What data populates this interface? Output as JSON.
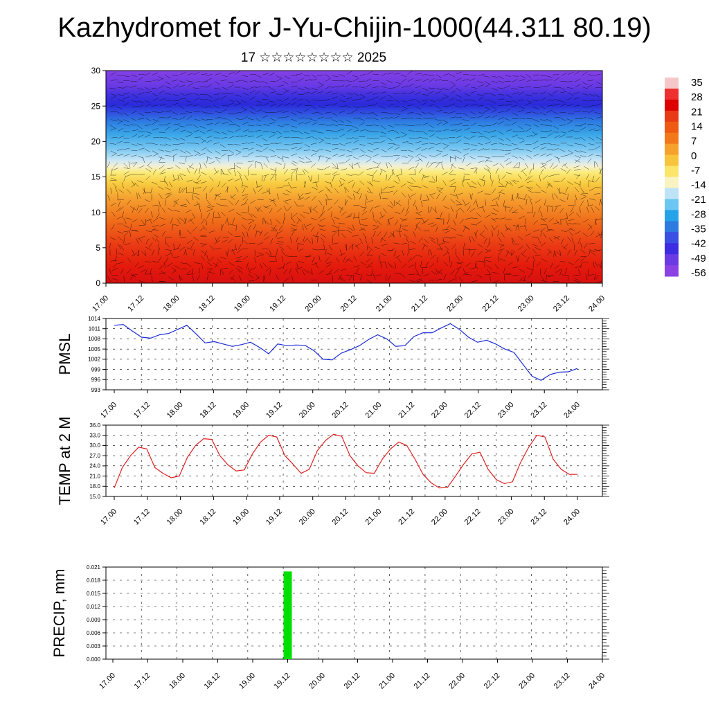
{
  "title": "Kazhydromet for J-Yu-Chijin-1000(44.311 80.19)",
  "subtitle": "17 ☆☆☆☆☆☆☆☆ 2025",
  "colorbar": {
    "labels": [
      "35",
      "28",
      "21",
      "14",
      "7",
      "0",
      "-7",
      "-14",
      "-21",
      "-28",
      "-35",
      "-42",
      "-49",
      "-56"
    ],
    "colors": [
      "#f4c8c8",
      "#ee3030",
      "#de0000",
      "#e83a14",
      "#ef5a12",
      "#f2781a",
      "#f6a12c",
      "#f8c43c",
      "#fbe56a",
      "#f9f3c2",
      "#bfe3f6",
      "#6cc6f2",
      "#26a2e8",
      "#2d7be0",
      "#3a4fe3",
      "#3e2ce2",
      "#6a3ae4",
      "#8a42e4"
    ]
  },
  "chart_data": [
    {
      "type": "heatmap",
      "ylabel": "",
      "ylim": [
        0,
        30
      ],
      "yticks": [
        "0",
        "5",
        "10",
        "15",
        "20",
        "25",
        "30"
      ],
      "xticks": [
        "17.00",
        "17.12",
        "18.00",
        "18.12",
        "19.00",
        "19.12",
        "20.00",
        "20.12",
        "21.00",
        "21.12",
        "22.00",
        "22.12",
        "23.00",
        "23.12",
        "24.00"
      ],
      "value_range": [
        -56,
        35
      ]
    },
    {
      "type": "line",
      "ylabel": "PMSL",
      "ylim": [
        993,
        1014
      ],
      "yticks": [
        "993",
        "996",
        "999",
        "1002",
        "1005",
        "1008",
        "1011",
        "1014"
      ],
      "xticks": [
        "17.00",
        "17.12",
        "18.00",
        "18.12",
        "19.00",
        "19.12",
        "20.00",
        "20.12",
        "21.00",
        "21.12",
        "22.00",
        "22.12",
        "23.00",
        "23.12",
        "24.00"
      ],
      "color": "#1a2bd6",
      "values": [
        1012,
        1012.2,
        1010.3,
        1008.5,
        1008.2,
        1009.2,
        1009.6,
        1010.8,
        1012,
        1009.5,
        1006.8,
        1007.2,
        1006.5,
        1005.8,
        1006.3,
        1007,
        1005.5,
        1003.6,
        1006.5,
        1006,
        1006.2,
        1006.1,
        1004.5,
        1002,
        1001.8,
        1003.8,
        1004.8,
        1006,
        1007.8,
        1009.2,
        1008,
        1005.8,
        1006,
        1008.7,
        1009.8,
        1009.8,
        1011.2,
        1012.5,
        1010.8,
        1008.5,
        1007,
        1007.6,
        1006.5,
        1005,
        1004,
        1000.5,
        997,
        995.8,
        997.5,
        998.2,
        998.3,
        999.3
      ]
    },
    {
      "type": "line",
      "ylabel": "TEMP at 2 M",
      "ylim": [
        15,
        36
      ],
      "yticks": [
        "15.0",
        "18.0",
        "21.0",
        "24.0",
        "27.0",
        "30.0",
        "33.0",
        "36.0"
      ],
      "xticks": [
        "17.00",
        "17.12",
        "18.00",
        "18.12",
        "19.00",
        "19.12",
        "20.00",
        "20.12",
        "21.00",
        "21.12",
        "22.00",
        "22.12",
        "23.00",
        "23.12",
        "24.00"
      ],
      "color": "#e02020",
      "values": [
        17.5,
        23.5,
        27,
        29.5,
        29,
        23.5,
        21.8,
        20.5,
        21,
        26.5,
        30,
        32,
        31.8,
        27,
        24.3,
        22.5,
        22.8,
        27.5,
        31,
        33,
        32.5,
        27,
        24.5,
        21.8,
        23,
        28.5,
        31.5,
        33.3,
        32.7,
        27,
        24,
        22,
        21.8,
        26,
        29,
        31,
        30,
        26,
        21.5,
        19,
        17.5,
        17.6,
        21,
        24.5,
        27.5,
        28,
        23,
        20,
        18.8,
        19.3,
        25,
        29.5,
        33,
        32.5,
        26,
        23,
        21.5,
        21.5
      ]
    },
    {
      "type": "bar",
      "ylabel": "PRECIP, mm",
      "ylim": [
        0,
        0.021
      ],
      "yticks": [
        "0.000",
        "0.003",
        "0.006",
        "0.009",
        "0.012",
        "0.015",
        "0.018",
        "0.021"
      ],
      "xticks": [
        "17.00",
        "17.12",
        "18.00",
        "18.12",
        "19.00",
        "19.12",
        "20.00",
        "20.12",
        "21.00",
        "21.12",
        "22.00",
        "22.12",
        "23.00",
        "23.12",
        "24.00"
      ],
      "color": "#00e000",
      "bars": [
        {
          "x": "19.12",
          "value": 0.02
        }
      ]
    }
  ]
}
